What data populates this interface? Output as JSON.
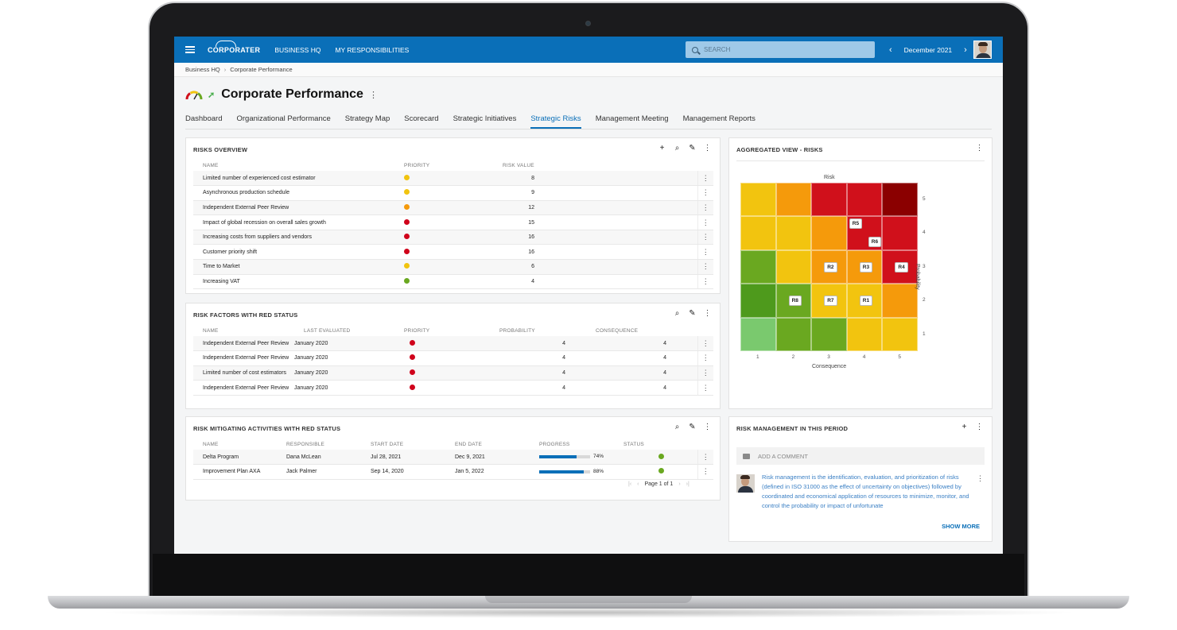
{
  "topbar": {
    "logo": "CORPORATER",
    "nav": [
      "BUSINESS HQ",
      "MY RESPONSIBILITIES"
    ],
    "search_placeholder": "SEARCH",
    "period": "December 2021",
    "prev_icon": "chevron-left-icon",
    "next_icon": "chevron-right-icon"
  },
  "breadcrumb": [
    "Business HQ",
    "Corporate Performance"
  ],
  "page": {
    "title": "Corporate Performance",
    "gauge_icon": "gauge-icon",
    "trend_icon": "trend-up-arrow-icon"
  },
  "tabs": [
    "Dashboard",
    "Organizational Performance",
    "Strategy Map",
    "Scorecard",
    "Strategic Initiatives",
    "Strategic Risks",
    "Management Meeting",
    "Management Reports"
  ],
  "active_tab": "Strategic Risks",
  "colors": {
    "brand_blue": "#0a6fb8",
    "status_red": "#d0021b",
    "status_orange": "#f59a0b",
    "status_yellow": "#f1c40f",
    "status_green": "#6aa820"
  },
  "risks_overview": {
    "title": "RISKS OVERVIEW",
    "columns": [
      "NAME",
      "PRIORITY",
      "RISK VALUE"
    ],
    "rows": [
      {
        "name": "Limited number of experienced cost estimator",
        "priority": "yellow",
        "value": "8"
      },
      {
        "name": "Asynchronous production schedule",
        "priority": "yellow",
        "value": "9"
      },
      {
        "name": "Independent External Peer Review",
        "priority": "orange",
        "value": "12"
      },
      {
        "name": "Impact of global recession on overall sales growth",
        "priority": "red",
        "value": "15"
      },
      {
        "name": "Increasing costs from suppliers and vendors",
        "priority": "red",
        "value": "16"
      },
      {
        "name": "Customer priority shift",
        "priority": "red",
        "value": "16"
      },
      {
        "name": "Time to Market",
        "priority": "yellow",
        "value": "6"
      },
      {
        "name": "Increasing VAT",
        "priority": "green",
        "value": "4"
      }
    ]
  },
  "risk_factors": {
    "title": "RISK FACTORS WITH RED STATUS",
    "columns": [
      "NAME",
      "LAST EVALUATED",
      "PRIORITY",
      "PROBABILITY",
      "CONSEQUENCE"
    ],
    "rows": [
      {
        "name": "Independent External Peer Review",
        "evaluated": "January 2020",
        "priority": "red",
        "probability": "4",
        "consequence": "4"
      },
      {
        "name": "Independent External Peer Review",
        "evaluated": "January 2020",
        "priority": "red",
        "probability": "4",
        "consequence": "4"
      },
      {
        "name": "Limited number of cost estimators",
        "evaluated": "January 2020",
        "priority": "red",
        "probability": "4",
        "consequence": "4"
      },
      {
        "name": "Independent External Peer Review",
        "evaluated": "January 2020",
        "priority": "red",
        "probability": "4",
        "consequence": "4"
      }
    ]
  },
  "mitigating": {
    "title": "RISK MITIGATING ACTIVITIES WITH RED STATUS",
    "columns": [
      "NAME",
      "RESPONSIBLE",
      "START DATE",
      "END DATE",
      "PROGRESS",
      "STATUS"
    ],
    "rows": [
      {
        "name": "Delta Program",
        "responsible": "Dana McLean",
        "start": "Jul 28, 2021",
        "end": "Dec 9, 2021",
        "progress": 0.74,
        "progress_label": "74%",
        "status": "green"
      },
      {
        "name": "Improvement Plan AXA",
        "responsible": "Jack Palmer",
        "start": "Sep 14, 2020",
        "end": "Jan 5, 2022",
        "progress": 0.88,
        "progress_label": "88%",
        "status": "green"
      }
    ],
    "pager": "Page 1 of 1"
  },
  "aggregated": {
    "title": "AGGREGATED VIEW - RISKS",
    "top_label": "Risk",
    "x_label": "Consequence",
    "y_label": "Probability",
    "x_ticks": [
      "1",
      "2",
      "3",
      "4",
      "5"
    ],
    "y_ticks": [
      "5",
      "4",
      "3",
      "2",
      "1"
    ],
    "matrix_rows_top_to_bottom": [
      [
        "#f2c40f",
        "#f59a0b",
        "#d0101b",
        "#d0101b",
        "#8b0000"
      ],
      [
        "#f2c40f",
        "#f2c40f",
        "#f59a0b",
        "#d0101b",
        "#d0101b"
      ],
      [
        "#6aa820",
        "#f2c40f",
        "#f59a0b",
        "#f59a0b",
        "#d0101b"
      ],
      [
        "#4e9a1c",
        "#6aa820",
        "#f2c40f",
        "#f2c40f",
        "#f59a0b"
      ],
      [
        "#7ac96e",
        "#6aa820",
        "#6aa820",
        "#f2c40f",
        "#f2c40f"
      ]
    ],
    "tags": [
      {
        "label": "R5",
        "consequence": 4,
        "probability": 4,
        "pos": "top"
      },
      {
        "label": "R6",
        "consequence": 4,
        "probability": 4,
        "pos": "bottom"
      },
      {
        "label": "R2",
        "consequence": 3,
        "probability": 3,
        "pos": "mid"
      },
      {
        "label": "R3",
        "consequence": 4,
        "probability": 3,
        "pos": "mid"
      },
      {
        "label": "R4",
        "consequence": 5,
        "probability": 3,
        "pos": "mid"
      },
      {
        "label": "R8",
        "consequence": 2,
        "probability": 2,
        "pos": "mid"
      },
      {
        "label": "R7",
        "consequence": 3,
        "probability": 2,
        "pos": "mid"
      },
      {
        "label": "R1",
        "consequence": 4,
        "probability": 2,
        "pos": "mid"
      }
    ]
  },
  "risk_management": {
    "title": "RISK MANAGEMENT IN THIS PERIOD",
    "comment_placeholder": "ADD A COMMENT",
    "comment_text": "Risk management is the identification, evaluation, and prioritization of risks (defined in ISO 31000 as the effect of uncertainty on objectives) followed by coordinated and economical application of resources to minimize, monitor, and control the probability or impact of unfortunate",
    "show_more": "SHOW MORE"
  }
}
